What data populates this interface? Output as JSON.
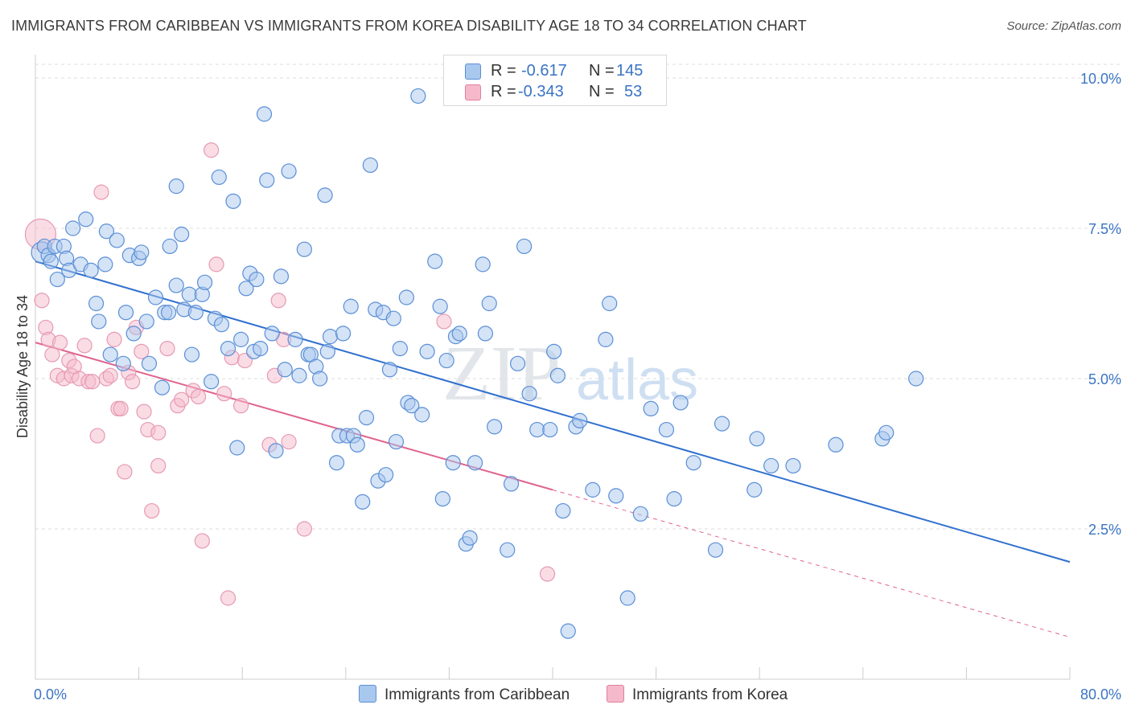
{
  "title": "IMMIGRANTS FROM CARIBBEAN VS IMMIGRANTS FROM KOREA DISABILITY AGE 18 TO 34 CORRELATION CHART",
  "source": "Source: ZipAtlas.com",
  "watermark": {
    "zip": "ZIP",
    "atlas": "atlas"
  },
  "legend": {
    "r_label": "R =",
    "n_label": "N =",
    "rows": [
      {
        "r": "-0.617",
        "n": "145"
      },
      {
        "r": "-0.343",
        "n": "53"
      }
    ]
  },
  "colors": {
    "caribbean_fill": "#a9c8ee",
    "caribbean_line": "#2f6fce",
    "korea_fill": "#f5b9cb",
    "korea_line": "#e0648f",
    "grid": "#dddddd",
    "tick_label": "#3a74c4"
  },
  "chart_data": {
    "type": "scatter",
    "title": "IMMIGRANTS FROM CARIBBEAN VS IMMIGRANTS FROM KOREA DISABILITY AGE 18 TO 34 CORRELATION CHART",
    "xlabel": "",
    "ylabel": "Disability Age 18 to 34",
    "xlim": [
      0,
      80
    ],
    "ylim": [
      0,
      10.5
    ],
    "x_tick_labels": [
      "0.0%",
      "80.0%"
    ],
    "y_ticks": [
      2.5,
      5.0,
      7.5,
      10.0
    ],
    "y_tick_labels": [
      "2.5%",
      "5.0%",
      "7.5%",
      "10.0%"
    ],
    "grid": "horizontal dashed",
    "legend_position": "top-center and bottom",
    "series": [
      {
        "name": "Immigrants from Caribbean",
        "points": [
          [
            0.5,
            7.1
          ],
          [
            0.7,
            7.2
          ],
          [
            1.0,
            7.05
          ],
          [
            1.2,
            6.95
          ],
          [
            1.5,
            7.2
          ],
          [
            1.7,
            6.65
          ],
          [
            2.2,
            7.2
          ],
          [
            2.4,
            7.0
          ],
          [
            2.6,
            6.8
          ],
          [
            2.9,
            7.5
          ],
          [
            3.5,
            6.9
          ],
          [
            3.9,
            7.65
          ],
          [
            4.3,
            6.8
          ],
          [
            4.7,
            6.25
          ],
          [
            4.9,
            5.95
          ],
          [
            5.4,
            6.9
          ],
          [
            5.5,
            7.45
          ],
          [
            5.8,
            5.4
          ],
          [
            6.3,
            7.3
          ],
          [
            6.8,
            5.25
          ],
          [
            7.0,
            6.1
          ],
          [
            7.3,
            7.05
          ],
          [
            7.6,
            5.75
          ],
          [
            8.0,
            7.0
          ],
          [
            8.2,
            7.1
          ],
          [
            8.6,
            5.95
          ],
          [
            8.8,
            5.25
          ],
          [
            9.3,
            6.35
          ],
          [
            9.8,
            4.85
          ],
          [
            10.0,
            6.1
          ],
          [
            10.3,
            6.1
          ],
          [
            10.4,
            7.2
          ],
          [
            10.9,
            6.55
          ],
          [
            10.9,
            8.2
          ],
          [
            11.3,
            7.4
          ],
          [
            11.5,
            6.15
          ],
          [
            11.9,
            6.4
          ],
          [
            12.1,
            5.4
          ],
          [
            12.4,
            6.1
          ],
          [
            12.9,
            6.4
          ],
          [
            13.1,
            6.6
          ],
          [
            13.6,
            4.95
          ],
          [
            13.9,
            6.0
          ],
          [
            14.2,
            8.35
          ],
          [
            14.4,
            5.9
          ],
          [
            14.9,
            5.5
          ],
          [
            15.3,
            7.95
          ],
          [
            15.6,
            3.85
          ],
          [
            15.9,
            5.65
          ],
          [
            16.3,
            6.5
          ],
          [
            16.6,
            6.75
          ],
          [
            16.9,
            5.45
          ],
          [
            17.1,
            6.65
          ],
          [
            17.4,
            5.5
          ],
          [
            17.7,
            9.4
          ],
          [
            17.9,
            8.3
          ],
          [
            18.3,
            5.75
          ],
          [
            18.6,
            3.8
          ],
          [
            19.0,
            6.7
          ],
          [
            19.3,
            5.15
          ],
          [
            19.6,
            8.45
          ],
          [
            20.1,
            5.65
          ],
          [
            20.4,
            5.05
          ],
          [
            20.8,
            7.15
          ],
          [
            21.1,
            5.4
          ],
          [
            21.3,
            5.4
          ],
          [
            21.7,
            5.2
          ],
          [
            22.0,
            5.0
          ],
          [
            22.4,
            8.05
          ],
          [
            22.6,
            5.45
          ],
          [
            22.8,
            5.7
          ],
          [
            23.3,
            3.6
          ],
          [
            23.5,
            4.05
          ],
          [
            23.8,
            5.75
          ],
          [
            24.1,
            4.05
          ],
          [
            24.4,
            6.2
          ],
          [
            24.6,
            4.05
          ],
          [
            24.9,
            3.9
          ],
          [
            25.3,
            2.95
          ],
          [
            25.6,
            4.35
          ],
          [
            25.9,
            8.55
          ],
          [
            26.3,
            6.15
          ],
          [
            26.5,
            3.3
          ],
          [
            26.9,
            6.1
          ],
          [
            27.1,
            3.4
          ],
          [
            27.4,
            5.15
          ],
          [
            27.7,
            6.0
          ],
          [
            27.9,
            3.95
          ],
          [
            28.2,
            5.5
          ],
          [
            28.7,
            6.35
          ],
          [
            28.8,
            4.6
          ],
          [
            29.1,
            4.55
          ],
          [
            29.6,
            9.7
          ],
          [
            29.9,
            4.4
          ],
          [
            30.3,
            5.45
          ],
          [
            30.9,
            6.95
          ],
          [
            31.3,
            6.2
          ],
          [
            31.5,
            3.0
          ],
          [
            31.8,
            5.3
          ],
          [
            32.3,
            3.6
          ],
          [
            32.5,
            5.7
          ],
          [
            32.8,
            5.75
          ],
          [
            33.3,
            2.25
          ],
          [
            33.6,
            2.35
          ],
          [
            34.0,
            3.6
          ],
          [
            34.6,
            6.9
          ],
          [
            34.8,
            5.75
          ],
          [
            35.1,
            6.25
          ],
          [
            35.5,
            4.2
          ],
          [
            36.5,
            2.15
          ],
          [
            36.8,
            3.25
          ],
          [
            37.3,
            5.25
          ],
          [
            37.8,
            7.2
          ],
          [
            38.2,
            4.75
          ],
          [
            38.8,
            4.15
          ],
          [
            39.8,
            4.15
          ],
          [
            40.1,
            5.45
          ],
          [
            40.4,
            5.05
          ],
          [
            40.8,
            2.8
          ],
          [
            41.2,
            0.8
          ],
          [
            41.8,
            4.2
          ],
          [
            42.1,
            4.3
          ],
          [
            43.1,
            3.15
          ],
          [
            44.1,
            5.65
          ],
          [
            44.4,
            6.25
          ],
          [
            44.9,
            3.05
          ],
          [
            45.8,
            1.35
          ],
          [
            46.8,
            2.75
          ],
          [
            47.6,
            4.5
          ],
          [
            48.8,
            4.15
          ],
          [
            49.4,
            3.0
          ],
          [
            49.9,
            4.6
          ],
          [
            50.9,
            3.6
          ],
          [
            52.6,
            2.15
          ],
          [
            53.1,
            4.25
          ],
          [
            55.6,
            3.15
          ],
          [
            55.8,
            4.0
          ],
          [
            56.9,
            3.55
          ],
          [
            58.6,
            3.55
          ],
          [
            61.9,
            3.9
          ],
          [
            65.5,
            4.0
          ],
          [
            65.8,
            4.1
          ],
          [
            68.1,
            5.0
          ]
        ]
      },
      {
        "name": "Immigrants from Korea",
        "points": [
          [
            0.4,
            7.4
          ],
          [
            0.5,
            6.3
          ],
          [
            0.8,
            5.85
          ],
          [
            1.0,
            5.65
          ],
          [
            1.3,
            5.4
          ],
          [
            1.7,
            5.05
          ],
          [
            1.9,
            5.6
          ],
          [
            2.2,
            5.0
          ],
          [
            2.6,
            5.3
          ],
          [
            2.8,
            5.05
          ],
          [
            3.0,
            5.2
          ],
          [
            3.4,
            5.0
          ],
          [
            3.8,
            5.55
          ],
          [
            4.1,
            4.95
          ],
          [
            4.4,
            4.95
          ],
          [
            4.8,
            4.05
          ],
          [
            5.1,
            8.1
          ],
          [
            5.5,
            5.0
          ],
          [
            5.8,
            5.05
          ],
          [
            6.1,
            5.65
          ],
          [
            6.4,
            4.5
          ],
          [
            6.6,
            4.5
          ],
          [
            6.9,
            3.45
          ],
          [
            7.2,
            5.1
          ],
          [
            7.5,
            4.95
          ],
          [
            7.8,
            5.85
          ],
          [
            8.2,
            5.45
          ],
          [
            8.4,
            4.45
          ],
          [
            8.7,
            4.15
          ],
          [
            9.0,
            2.8
          ],
          [
            9.5,
            3.55
          ],
          [
            9.5,
            4.1
          ],
          [
            10.2,
            5.5
          ],
          [
            11.0,
            4.55
          ],
          [
            11.3,
            4.65
          ],
          [
            12.2,
            4.8
          ],
          [
            12.6,
            4.7
          ],
          [
            12.9,
            2.3
          ],
          [
            13.6,
            8.8
          ],
          [
            14.0,
            6.9
          ],
          [
            14.6,
            4.75
          ],
          [
            14.9,
            1.35
          ],
          [
            15.2,
            5.35
          ],
          [
            15.9,
            4.55
          ],
          [
            16.2,
            5.3
          ],
          [
            18.1,
            3.9
          ],
          [
            18.5,
            5.05
          ],
          [
            18.8,
            6.3
          ],
          [
            19.2,
            5.65
          ],
          [
            19.6,
            3.95
          ],
          [
            20.8,
            2.5
          ],
          [
            31.6,
            5.95
          ],
          [
            39.6,
            1.75
          ]
        ]
      }
    ],
    "trend_lines": [
      {
        "series": "Immigrants from Caribbean",
        "from": [
          0,
          6.95
        ],
        "to": [
          80,
          1.95
        ]
      },
      {
        "series": "Immigrants from Korea",
        "from": [
          0,
          5.6
        ],
        "to": [
          40,
          3.15
        ],
        "dashed_extension_to": [
          80,
          0.7
        ]
      }
    ]
  }
}
